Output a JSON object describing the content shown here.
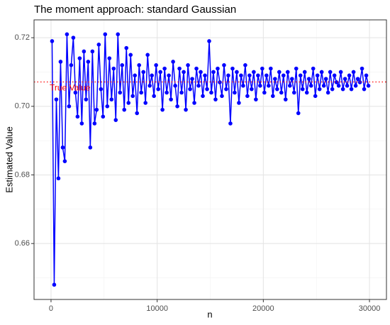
{
  "chart_data": {
    "type": "line",
    "title": "The moment approach: standard Gaussian",
    "xlabel": "n",
    "ylabel": "Estimated Value",
    "xlim": [
      -1600,
      31600
    ],
    "ylim": [
      0.6437,
      0.7252
    ],
    "xticks": [
      0,
      10000,
      20000,
      30000
    ],
    "yticks": [
      {
        "value": 0.66,
        "label": "0.66"
      },
      {
        "value": 0.68,
        "label": "0.68"
      },
      {
        "value": 0.7,
        "label": "0.70"
      },
      {
        "value": 0.72,
        "label": "0.72"
      }
    ],
    "xminorticks": [
      5000,
      15000,
      25000
    ],
    "yminorticks": [
      0.65,
      0.67,
      0.69,
      0.71
    ],
    "grid": true,
    "reference_line": {
      "value": 0.7071,
      "label": "True Value",
      "color": "red"
    },
    "series": [
      {
        "color": "blue",
        "x": [
          100,
          300,
          500,
          700,
          900,
          1100,
          1300,
          1500,
          1700,
          1900,
          2100,
          2300,
          2500,
          2700,
          2900,
          3100,
          3300,
          3500,
          3700,
          3900,
          4100,
          4300,
          4500,
          4700,
          4900,
          5100,
          5300,
          5500,
          5700,
          5900,
          6100,
          6300,
          6500,
          6700,
          6900,
          7100,
          7300,
          7500,
          7700,
          7900,
          8100,
          8300,
          8500,
          8700,
          8900,
          9100,
          9300,
          9500,
          9700,
          9900,
          10100,
          10300,
          10500,
          10700,
          10900,
          11100,
          11300,
          11500,
          11700,
          11900,
          12100,
          12300,
          12500,
          12700,
          12900,
          13100,
          13300,
          13500,
          13700,
          13900,
          14100,
          14300,
          14500,
          14700,
          14900,
          15100,
          15300,
          15500,
          15700,
          15900,
          16100,
          16300,
          16500,
          16700,
          16900,
          17100,
          17300,
          17500,
          17700,
          17900,
          18100,
          18300,
          18500,
          18700,
          18900,
          19100,
          19300,
          19500,
          19700,
          19900,
          20100,
          20300,
          20500,
          20700,
          20900,
          21100,
          21300,
          21500,
          21700,
          21900,
          22100,
          22300,
          22500,
          22700,
          22900,
          23100,
          23300,
          23500,
          23700,
          23900,
          24100,
          24300,
          24500,
          24700,
          24900,
          25100,
          25300,
          25500,
          25700,
          25900,
          26100,
          26300,
          26500,
          26700,
          26900,
          27100,
          27300,
          27500,
          27700,
          27900,
          28100,
          28300,
          28500,
          28700,
          28900,
          29100,
          29300,
          29500,
          29700,
          29900
        ],
        "values": [
          0.719,
          0.648,
          0.702,
          0.679,
          0.713,
          0.688,
          0.684,
          0.721,
          0.7,
          0.712,
          0.72,
          0.704,
          0.697,
          0.714,
          0.695,
          0.716,
          0.702,
          0.713,
          0.688,
          0.716,
          0.695,
          0.699,
          0.718,
          0.705,
          0.697,
          0.721,
          0.7,
          0.714,
          0.702,
          0.711,
          0.696,
          0.721,
          0.704,
          0.712,
          0.699,
          0.717,
          0.701,
          0.715,
          0.703,
          0.709,
          0.698,
          0.712,
          0.704,
          0.71,
          0.701,
          0.715,
          0.706,
          0.709,
          0.703,
          0.712,
          0.705,
          0.71,
          0.699,
          0.711,
          0.704,
          0.709,
          0.702,
          0.713,
          0.706,
          0.7,
          0.711,
          0.704,
          0.71,
          0.699,
          0.712,
          0.705,
          0.708,
          0.701,
          0.711,
          0.706,
          0.71,
          0.703,
          0.709,
          0.705,
          0.719,
          0.704,
          0.71,
          0.702,
          0.711,
          0.707,
          0.703,
          0.712,
          0.705,
          0.709,
          0.695,
          0.711,
          0.704,
          0.71,
          0.701,
          0.709,
          0.706,
          0.712,
          0.703,
          0.709,
          0.705,
          0.71,
          0.702,
          0.709,
          0.706,
          0.711,
          0.704,
          0.709,
          0.706,
          0.711,
          0.703,
          0.708,
          0.705,
          0.71,
          0.704,
          0.709,
          0.702,
          0.71,
          0.706,
          0.708,
          0.704,
          0.711,
          0.698,
          0.709,
          0.705,
          0.71,
          0.704,
          0.708,
          0.706,
          0.711,
          0.703,
          0.709,
          0.705,
          0.71,
          0.706,
          0.708,
          0.704,
          0.71,
          0.705,
          0.709,
          0.707,
          0.706,
          0.71,
          0.705,
          0.708,
          0.706,
          0.709,
          0.705,
          0.71,
          0.706,
          0.708,
          0.707,
          0.711,
          0.705,
          0.709,
          0.706
        ]
      }
    ]
  }
}
